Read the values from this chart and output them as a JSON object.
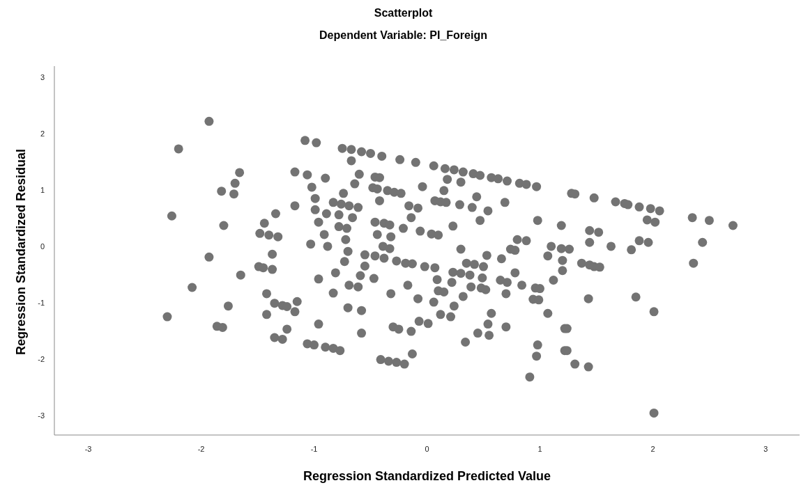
{
  "chart_data": {
    "type": "scatter",
    "title": "Scatterplot",
    "subtitle": "Dependent Variable: PI_Foreign",
    "xlabel": "Regression Standardized Predicted Value",
    "ylabel": "Regression Standardized Residual",
    "xlim": [
      -3.3,
      3.3
    ],
    "ylim": [
      -3.35,
      3.2
    ],
    "xticks": [
      -3,
      -2,
      -1,
      0,
      1,
      2,
      3
    ],
    "yticks": [
      -3,
      -2,
      -1,
      0,
      1,
      2,
      3
    ],
    "grid": false,
    "legend": false,
    "marker": "circle",
    "series": [
      {
        "color": "#737373",
        "x": [
          -1.93,
          -2.2,
          -2.26,
          -1.66,
          -1.7,
          -1.82,
          -1.71,
          -1.8,
          -1.93,
          -2.08,
          -2.3,
          -1.65,
          -1.76,
          -1.86,
          -1.81,
          -1.48,
          -1.4,
          -1.44,
          -1.34,
          -1.32,
          -1.49,
          -1.45,
          -1.37,
          -1.37,
          -1.42,
          -1.35,
          -1.28,
          -1.24,
          -1.42,
          -1.35,
          -1.28,
          -1.24,
          -1.17,
          -1.15,
          -1.17,
          -1.17,
          -1.08,
          -0.98,
          -1.06,
          -1.02,
          -0.99,
          -0.99,
          -0.96,
          -0.91,
          -0.9,
          -0.89,
          -0.88,
          -1.03,
          -0.96,
          -0.96,
          -1.06,
          -1.0,
          -0.9,
          -0.83,
          -0.77,
          -0.83,
          -0.81,
          -0.75,
          -0.67,
          -0.58,
          -0.5,
          -0.4,
          -0.24,
          -0.1,
          0.06,
          0.16,
          0.24,
          0.32,
          0.41,
          0.47,
          0.57,
          0.63,
          0.71,
          0.82,
          0.88,
          0.97,
          -0.67,
          -0.6,
          -0.64,
          -0.74,
          -0.46,
          -0.42,
          -0.48,
          -0.44,
          -0.35,
          -0.29,
          -0.23,
          -0.42,
          -0.04,
          0.18,
          0.3,
          0.15,
          0.07,
          0.12,
          0.17,
          0.29,
          0.4,
          0.44,
          0.54,
          0.69,
          0.47,
          0.98,
          1.19,
          -0.16,
          -0.08,
          -0.14,
          -0.21,
          -0.06,
          0.04,
          0.1,
          0.23,
          -0.46,
          -0.38,
          -0.33,
          -0.44,
          -0.32,
          -0.83,
          -0.76,
          -0.69,
          -0.61,
          -0.78,
          -0.66,
          -0.78,
          -0.71,
          -0.72,
          0.8,
          0.88,
          1.1,
          1.19,
          -0.39,
          0.3,
          0.74,
          -0.7,
          -0.55,
          -0.46,
          -0.38,
          -0.27,
          -0.19,
          -0.13,
          -0.02,
          0.07,
          -0.33,
          -0.73,
          -0.55,
          -0.59,
          -0.47,
          -0.69,
          -0.61,
          -0.32,
          -0.17,
          -0.08,
          -0.7,
          -0.58,
          -0.58,
          -0.3,
          -0.25,
          -0.14,
          -0.07,
          0.01,
          -0.13,
          -0.41,
          -0.34,
          -0.27,
          -0.2,
          0.09,
          0.1,
          0.15,
          0.06,
          0.12,
          0.21,
          0.24,
          0.32,
          0.22,
          0.23,
          0.3,
          0.38,
          0.35,
          0.42,
          0.5,
          0.53,
          0.49,
          0.39,
          0.48,
          0.52,
          0.57,
          0.54,
          0.55,
          0.45,
          0.34,
          0.66,
          0.78,
          0.65,
          0.71,
          0.7,
          0.78,
          0.84,
          0.96,
          1.0,
          0.94,
          0.99,
          0.7,
          1.07,
          0.98,
          0.97,
          0.91,
          1.07,
          1.2,
          1.2,
          1.12,
          1.22,
          1.22,
          1.28,
          1.31,
          1.48,
          1.67,
          1.75,
          1.78,
          1.88,
          1.98,
          2.06,
          1.95,
          2.02,
          2.35,
          2.5,
          2.71,
          2.44,
          1.44,
          1.52,
          1.44,
          1.63,
          1.88,
          1.96,
          1.81,
          1.26,
          1.37,
          1.44,
          1.48,
          1.53,
          2.36,
          1.43,
          1.85,
          2.01,
          1.24,
          1.24,
          1.31,
          1.43,
          2.01
        ],
        "values": [
          2.22,
          1.73,
          0.54,
          1.31,
          1.12,
          0.98,
          0.93,
          0.37,
          -0.19,
          -0.73,
          -1.25,
          -0.51,
          -1.06,
          -1.42,
          -1.44,
          0.23,
          0.2,
          0.41,
          0.58,
          0.17,
          -0.36,
          -0.38,
          -0.14,
          -0.41,
          -0.84,
          -1.01,
          -1.05,
          -1.07,
          -1.21,
          -1.62,
          -1.65,
          -1.47,
          -1.16,
          -0.98,
          0.72,
          1.32,
          1.88,
          1.84,
          1.27,
          1.05,
          0.85,
          0.65,
          0.43,
          0.21,
          1.21,
          0.58,
          0.0,
          0.04,
          -0.58,
          -1.38,
          -1.73,
          -1.75,
          -1.79,
          -1.81,
          -1.85,
          -0.83,
          -0.47,
          1.74,
          1.72,
          1.68,
          1.65,
          1.6,
          1.54,
          1.49,
          1.43,
          1.38,
          1.36,
          1.32,
          1.29,
          1.26,
          1.22,
          1.2,
          1.16,
          1.12,
          1.1,
          1.06,
          1.52,
          1.28,
          1.11,
          0.94,
          1.23,
          1.22,
          1.04,
          1.02,
          0.99,
          0.96,
          0.94,
          0.81,
          1.06,
          1.19,
          1.14,
          0.99,
          0.81,
          0.79,
          0.78,
          0.74,
          0.69,
          0.88,
          0.63,
          0.78,
          0.46,
          0.46,
          0.37,
          0.72,
          0.68,
          0.51,
          0.32,
          0.27,
          0.22,
          0.2,
          0.36,
          0.43,
          0.41,
          0.38,
          0.21,
          0.17,
          0.78,
          0.75,
          0.72,
          0.69,
          0.56,
          0.51,
          0.35,
          0.32,
          0.12,
          0.12,
          0.1,
          0.0,
          -0.04,
          0.0,
          -0.05,
          -0.05,
          -0.09,
          -0.15,
          -0.17,
          -0.21,
          -0.26,
          -0.3,
          -0.31,
          -0.36,
          -0.38,
          -0.04,
          -0.27,
          -0.35,
          -0.52,
          -0.57,
          -0.69,
          -0.72,
          -0.84,
          -0.69,
          -0.93,
          -1.09,
          -1.14,
          -1.54,
          -1.43,
          -1.47,
          -1.51,
          -1.33,
          -1.37,
          -1.91,
          -2.01,
          -2.04,
          -2.06,
          -2.09,
          -0.59,
          -0.79,
          -0.81,
          -0.99,
          -1.21,
          -1.25,
          -1.06,
          -0.89,
          -0.64,
          -0.46,
          -0.48,
          -0.51,
          -0.3,
          -0.32,
          -0.36,
          -0.16,
          -0.56,
          -0.72,
          -0.74,
          -0.77,
          -1.19,
          -1.38,
          -1.58,
          -1.54,
          -1.7,
          -0.22,
          -0.07,
          -0.6,
          -0.64,
          -0.84,
          -0.47,
          -0.69,
          -0.74,
          -0.75,
          -0.94,
          -0.95,
          -1.43,
          -1.19,
          -1.75,
          -1.95,
          -2.32,
          -0.17,
          -0.25,
          -0.43,
          -0.6,
          -1.46,
          -1.85,
          0.94,
          0.93,
          0.86,
          0.79,
          0.76,
          0.74,
          0.7,
          0.67,
          0.63,
          0.47,
          0.43,
          0.51,
          0.46,
          0.37,
          0.07,
          0.28,
          0.25,
          0.07,
          0.0,
          0.1,
          0.07,
          -0.06,
          -0.05,
          -0.3,
          -0.33,
          -0.36,
          -0.37,
          -0.3,
          -0.93,
          -0.9,
          -1.16,
          -1.46,
          -1.85,
          -2.09,
          -2.14,
          -2.96
        ]
      }
    ]
  }
}
